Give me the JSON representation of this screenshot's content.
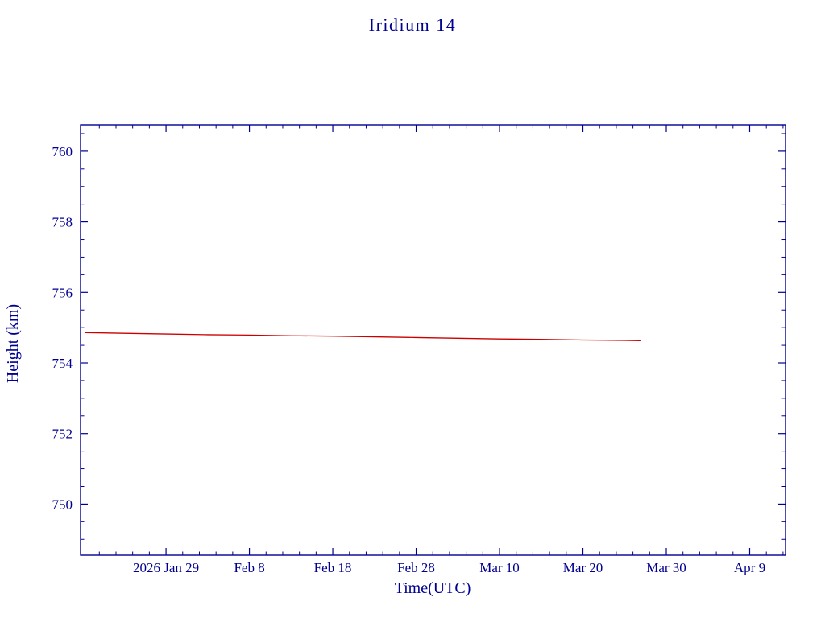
{
  "chart_data": {
    "type": "line",
    "title": "Iridium 14",
    "xlabel": "Time(UTC)",
    "ylabel": "Height (km)",
    "axis_color": "#000090",
    "text_color": "#000090",
    "background_color": "#ffffff",
    "grid": false,
    "legend": false,
    "xlim": [
      -10.25,
      74.3
    ],
    "ylim": [
      748.55,
      760.75
    ],
    "x_unit": "days since 2026 Jan 29",
    "x_ticks": [
      {
        "value": 0,
        "label": "2026 Jan 29"
      },
      {
        "value": 10,
        "label": "Feb  8"
      },
      {
        "value": 20,
        "label": "Feb 18"
      },
      {
        "value": 30,
        "label": "Feb 28"
      },
      {
        "value": 40,
        "label": "Mar 10"
      },
      {
        "value": 50,
        "label": "Mar 20"
      },
      {
        "value": 60,
        "label": "Mar 30"
      },
      {
        "value": 70,
        "label": "Apr  9"
      }
    ],
    "x_minor_step": 2,
    "y_ticks": [
      750,
      752,
      754,
      756,
      758,
      760
    ],
    "y_minor_step": 0.5,
    "series": [
      {
        "name": "orbit-height",
        "color": "#cc0000",
        "x": [
          -9.7,
          -5,
          0,
          5,
          10,
          15,
          20,
          25,
          30,
          35,
          40,
          45,
          50,
          55,
          56.9
        ],
        "values": [
          754.86,
          754.84,
          754.82,
          754.8,
          754.79,
          754.77,
          754.76,
          754.74,
          754.72,
          754.7,
          754.68,
          754.67,
          754.65,
          754.64,
          754.63
        ]
      }
    ]
  }
}
